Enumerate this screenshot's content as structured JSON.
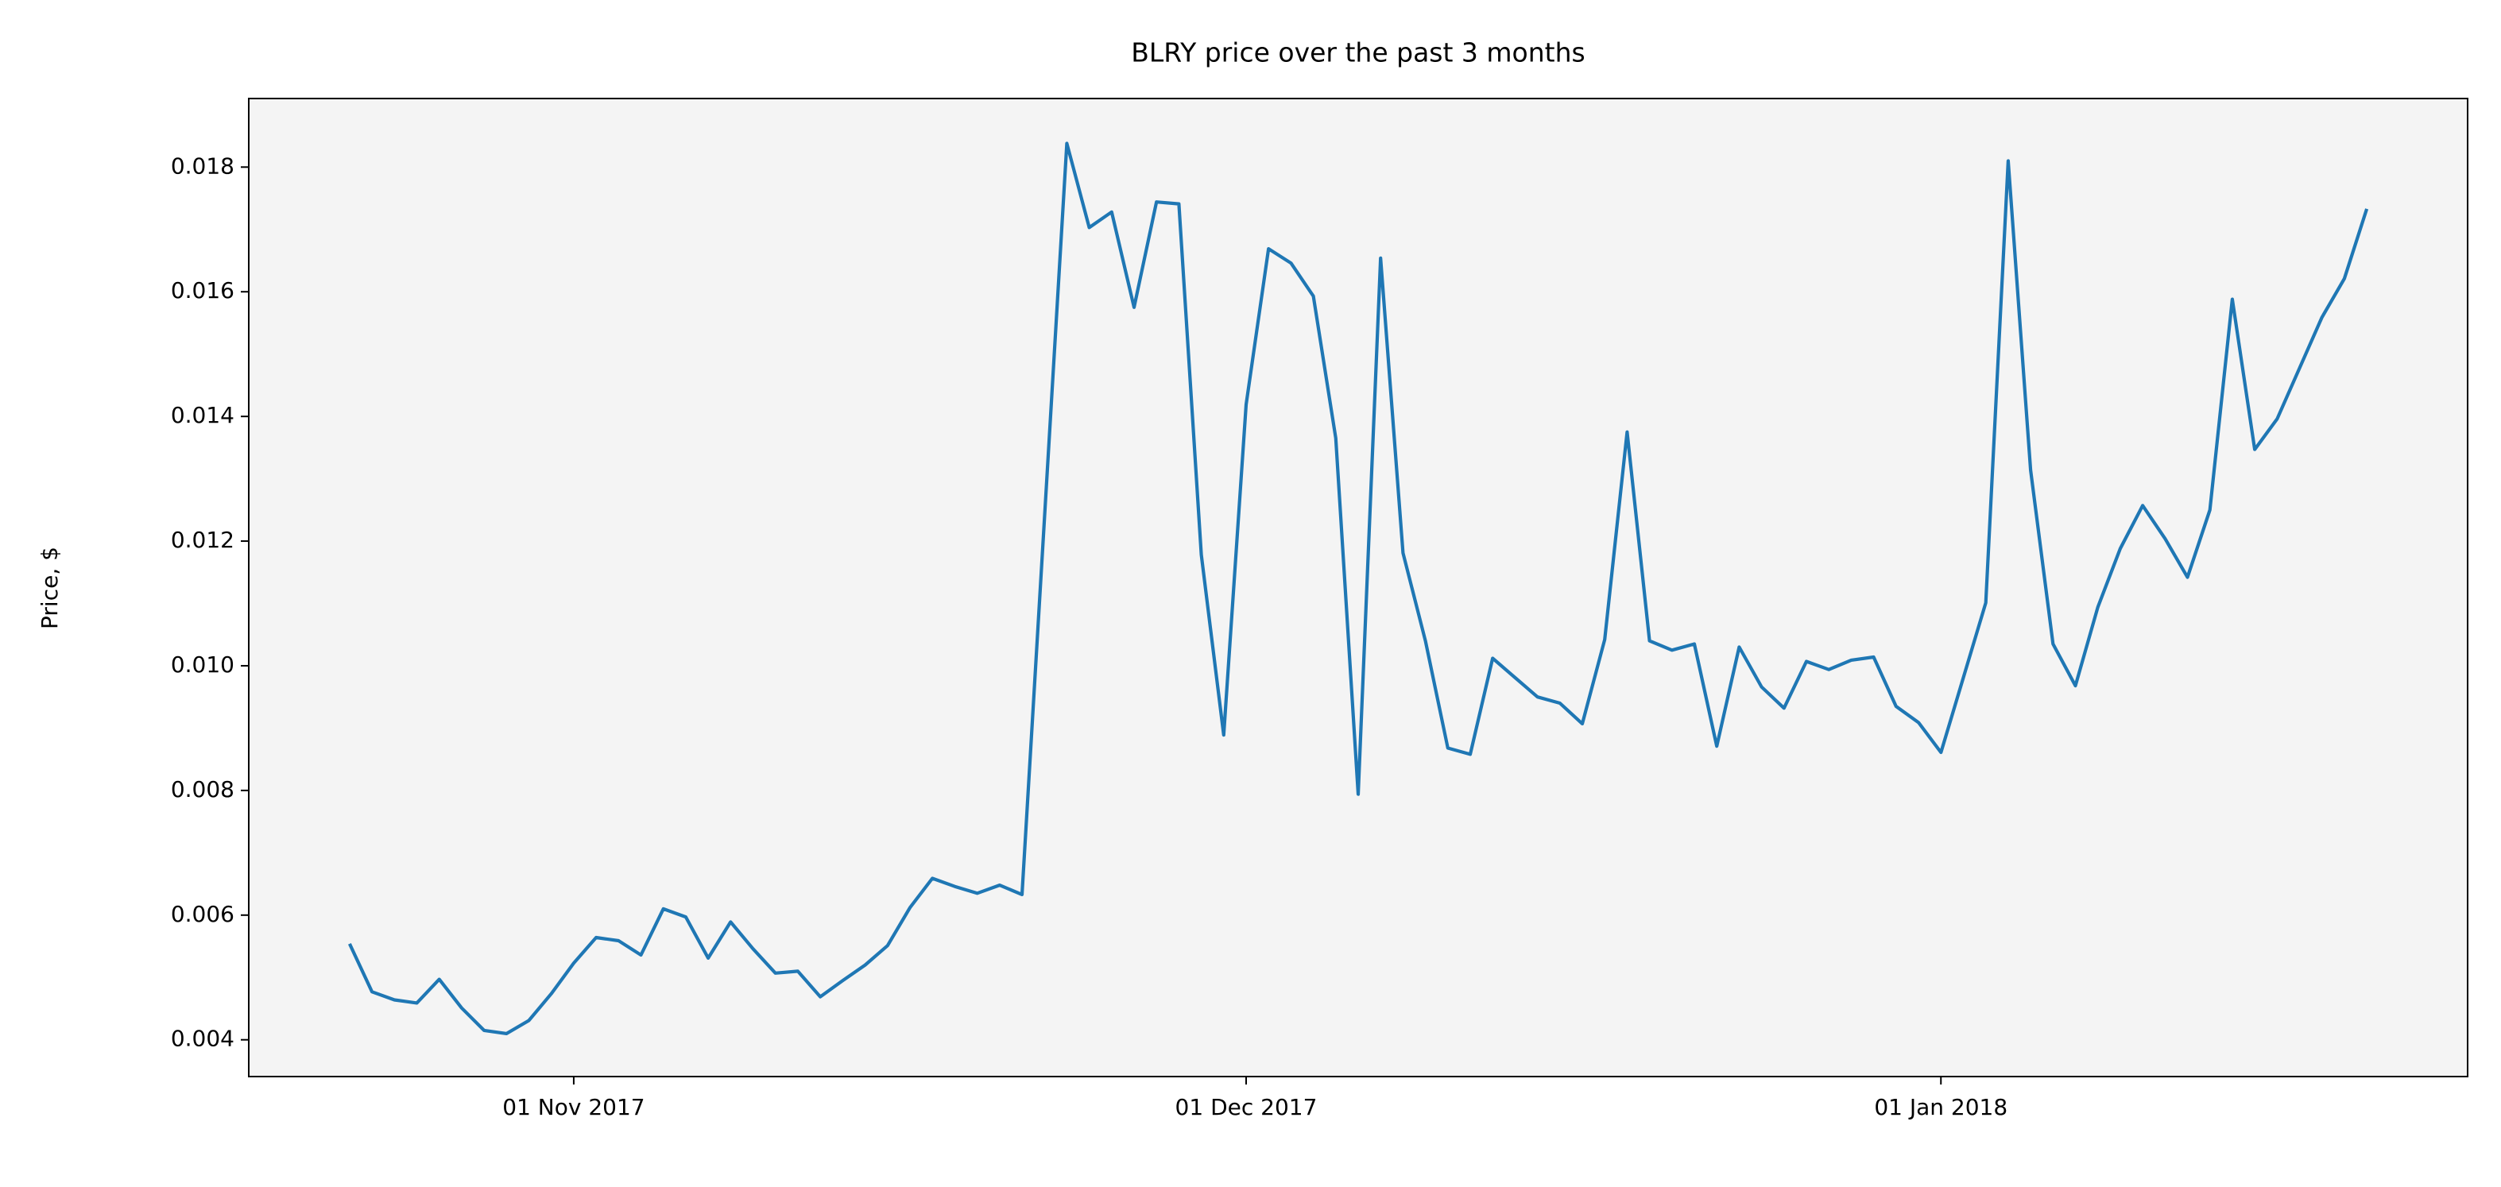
{
  "chart_data": {
    "type": "line",
    "title": "BLRY price over the past 3 months",
    "y_label": "Price, $",
    "color": "#1f77b4",
    "x": [
      "2017-10-22",
      "2017-10-23",
      "2017-10-24",
      "2017-10-25",
      "2017-10-26",
      "2017-10-27",
      "2017-10-28",
      "2017-10-29",
      "2017-10-30",
      "2017-10-31",
      "2017-11-01",
      "2017-11-02",
      "2017-11-03",
      "2017-11-04",
      "2017-11-05",
      "2017-11-06",
      "2017-11-07",
      "2017-11-08",
      "2017-11-09",
      "2017-11-10",
      "2017-11-11",
      "2017-11-12",
      "2017-11-13",
      "2017-11-14",
      "2017-11-15",
      "2017-11-16",
      "2017-11-17",
      "2017-11-18",
      "2017-11-19",
      "2017-11-20",
      "2017-11-21",
      "2017-11-23",
      "2017-11-24",
      "2017-11-25",
      "2017-11-26",
      "2017-11-27",
      "2017-11-28",
      "2017-11-29",
      "2017-11-30",
      "2017-12-01",
      "2017-12-02",
      "2017-12-03",
      "2017-12-04",
      "2017-12-05",
      "2017-12-06",
      "2017-12-07",
      "2017-12-08",
      "2017-12-09",
      "2017-12-10",
      "2017-12-11",
      "2017-12-12",
      "2017-12-13",
      "2017-12-14",
      "2017-12-15",
      "2017-12-16",
      "2017-12-17",
      "2017-12-18",
      "2017-12-19",
      "2017-12-20",
      "2017-12-21",
      "2017-12-22",
      "2017-12-23",
      "2017-12-24",
      "2017-12-25",
      "2017-12-26",
      "2017-12-27",
      "2017-12-28",
      "2017-12-29",
      "2017-12-30",
      "2017-12-31",
      "2018-01-01",
      "2018-01-03",
      "2018-01-04",
      "2018-01-05",
      "2018-01-06",
      "2018-01-07",
      "2018-01-08",
      "2018-01-09",
      "2018-01-10",
      "2018-01-11",
      "2018-01-12",
      "2018-01-13",
      "2018-01-14",
      "2018-01-15",
      "2018-01-16",
      "2018-01-18",
      "2018-01-19",
      "2018-01-20"
    ],
    "values": [
      0.00554,
      0.00477,
      0.00464,
      0.00459,
      0.00497,
      0.00451,
      0.00415,
      0.0041,
      0.00431,
      0.00474,
      0.00523,
      0.00564,
      0.00559,
      0.00536,
      0.0061,
      0.00597,
      0.00531,
      0.00589,
      0.00546,
      0.00507,
      0.0051,
      0.00469,
      0.00495,
      0.0052,
      0.00551,
      0.00612,
      0.00659,
      0.00646,
      0.00635,
      0.00648,
      0.00633,
      0.01838,
      0.01703,
      0.01728,
      0.01575,
      0.01744,
      0.01741,
      0.01178,
      0.00889,
      0.01419,
      0.01669,
      0.01646,
      0.01593,
      0.01365,
      0.00794,
      0.01654,
      0.01181,
      0.0104,
      0.00868,
      0.00858,
      0.01012,
      0.00981,
      0.0095,
      0.0094,
      0.00907,
      0.01042,
      0.01375,
      0.0104,
      0.01025,
      0.01035,
      0.00871,
      0.0103,
      0.00966,
      0.00932,
      0.01007,
      0.00994,
      0.01009,
      0.01014,
      0.00935,
      0.00909,
      0.00861,
      0.01101,
      0.0181,
      0.01314,
      0.01035,
      0.00968,
      0.01094,
      0.01188,
      0.01257,
      0.01204,
      0.01142,
      0.0125,
      0.01588,
      0.01347,
      0.01396,
      0.01559,
      0.01621,
      0.01733
    ],
    "xlim": [
      "2017-10-17T12:00:00Z",
      "2018-01-24T12:00:00Z"
    ],
    "xticks": [
      {
        "value": "2017-11-01",
        "label": "01 Nov 2017"
      },
      {
        "value": "2017-12-01",
        "label": "01 Dec 2017"
      },
      {
        "value": "2018-01-01",
        "label": "01 Jan 2018"
      }
    ],
    "ylim": [
      0.00341,
      0.0191
    ],
    "yticks": [
      0.004,
      0.006,
      0.008,
      {
        "value": 0.01,
        "label": "0.010"
      },
      0.012,
      0.014,
      0.016,
      0.018
    ],
    "grid": false
  }
}
